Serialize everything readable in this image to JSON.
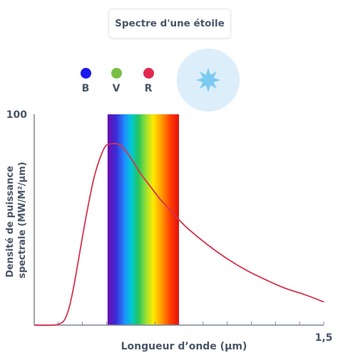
{
  "title": "Spectre d'une étoile",
  "legend": [
    {
      "label": "B",
      "color": "#1a1aee"
    },
    {
      "label": "V",
      "color": "#77c043"
    },
    {
      "label": "R",
      "color": "#e0284f"
    }
  ],
  "star_icon": "star-burst-icon",
  "colors": {
    "curve": "#d6334f",
    "axis": "#7f8896",
    "star_halo": "#dbeefa",
    "star_fill": "#7ccaf2"
  },
  "chart_data": {
    "type": "line",
    "title": "Spectre d'une étoile",
    "xlabel": "Longueur d’onde (µm)",
    "ylabel_lines": [
      "Densité de puissance",
      "spectrale (MW/M²/µm)"
    ],
    "y_tick_label": "100",
    "x_tick_label": "1,5",
    "xlim": [
      0,
      1.5
    ],
    "ylim": [
      0,
      100
    ],
    "visible_band": [
      0.38,
      0.75
    ],
    "series": [
      {
        "x": [
          0,
          0.1,
          0.14,
          0.16,
          0.18,
          0.2,
          0.22,
          0.25,
          0.28,
          0.31,
          0.34,
          0.37,
          0.4,
          0.43,
          0.45,
          0.48,
          0.51,
          0.55,
          0.6,
          0.65,
          0.7,
          0.75,
          0.8,
          0.9,
          1.0,
          1.1,
          1.2,
          1.3,
          1.4,
          1.5
        ],
        "y": [
          0,
          0,
          1,
          3,
          8,
          16,
          26,
          42,
          57,
          70,
          79,
          85,
          86,
          86,
          85,
          82,
          78,
          72,
          66,
          60,
          55,
          50,
          45.5,
          38,
          31.5,
          26,
          21.5,
          17.5,
          14.5,
          11
        ]
      }
    ]
  }
}
